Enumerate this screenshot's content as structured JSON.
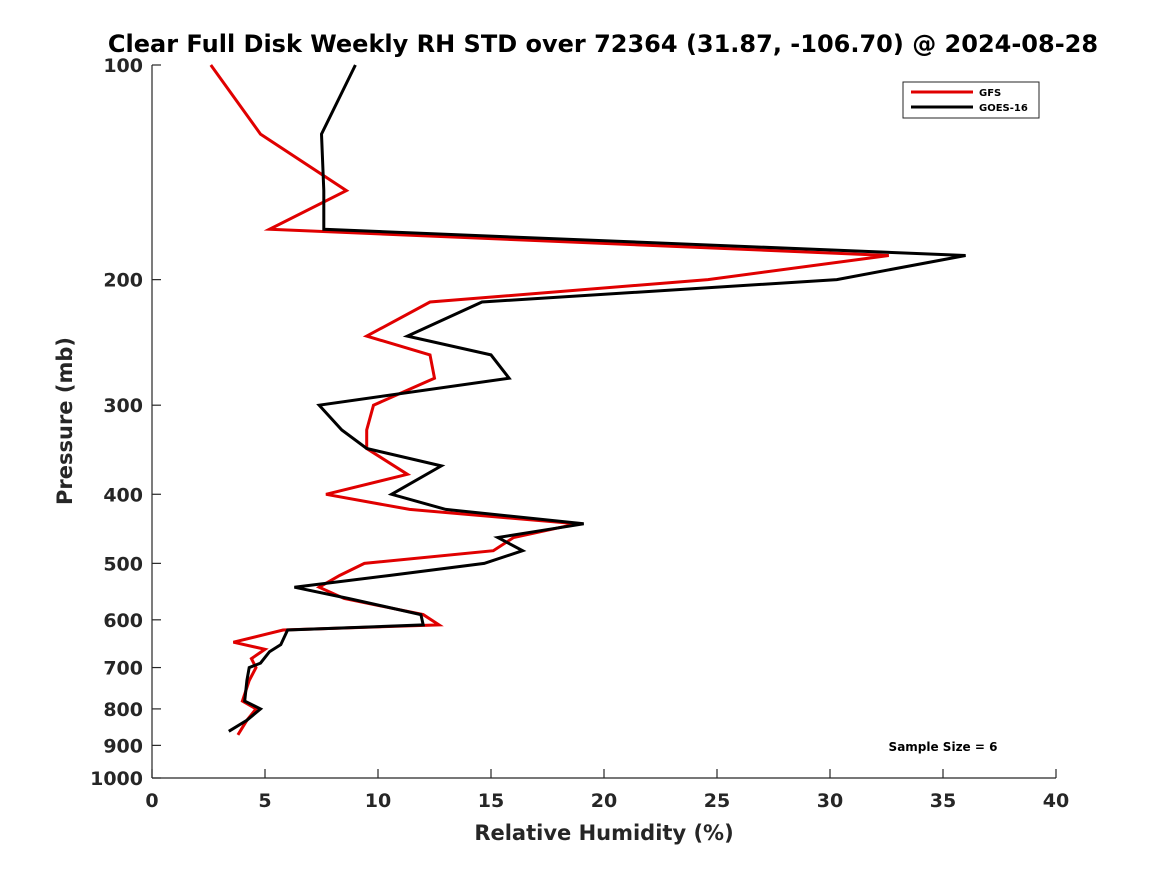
{
  "chart_data": {
    "type": "line",
    "title": "Clear Full Disk Weekly RH STD over 72364 (31.87, -106.70) @ 2024-08-28",
    "xlabel": "Relative Humidity (%)",
    "ylabel": "Pressure (mb)",
    "xlim": [
      0,
      40
    ],
    "ylim": [
      1000,
      100
    ],
    "yscale": "log",
    "xticks": [
      0,
      5,
      10,
      15,
      20,
      25,
      30,
      35,
      40
    ],
    "yticks": [
      100,
      200,
      300,
      400,
      500,
      600,
      700,
      800,
      900,
      1000
    ],
    "grid": false,
    "legend_location": "top-right",
    "annotation": "Sample Size = 6",
    "series": [
      {
        "name": "GFS",
        "color": "#e00000",
        "points": [
          [
            2.6,
            100
          ],
          [
            4.8,
            125
          ],
          [
            8.6,
            150
          ],
          [
            5.2,
            170
          ],
          [
            32.6,
            185
          ],
          [
            24.6,
            200
          ],
          [
            12.3,
            215
          ],
          [
            9.5,
            240
          ],
          [
            12.3,
            255
          ],
          [
            12.5,
            275
          ],
          [
            9.8,
            300
          ],
          [
            9.5,
            325
          ],
          [
            9.5,
            345
          ],
          [
            11.3,
            375
          ],
          [
            7.7,
            400
          ],
          [
            11.4,
            420
          ],
          [
            18.8,
            440
          ],
          [
            16.0,
            460
          ],
          [
            15.1,
            480
          ],
          [
            9.4,
            500
          ],
          [
            8.3,
            520
          ],
          [
            7.4,
            540
          ],
          [
            8.5,
            560
          ],
          [
            12.0,
            590
          ],
          [
            12.7,
            610
          ],
          [
            5.8,
            620
          ],
          [
            3.6,
            645
          ],
          [
            5.0,
            660
          ],
          [
            4.4,
            680
          ],
          [
            4.6,
            700
          ],
          [
            4.3,
            730
          ],
          [
            4.0,
            780
          ],
          [
            4.6,
            800
          ],
          [
            4.2,
            830
          ],
          [
            3.9,
            860
          ],
          [
            3.8,
            870
          ]
        ]
      },
      {
        "name": "GOES-16",
        "color": "#000000",
        "points": [
          [
            9.0,
            100
          ],
          [
            7.5,
            125
          ],
          [
            7.6,
            150
          ],
          [
            7.6,
            170
          ],
          [
            36.0,
            185
          ],
          [
            30.3,
            200
          ],
          [
            14.6,
            215
          ],
          [
            11.3,
            240
          ],
          [
            15.0,
            255
          ],
          [
            15.8,
            275
          ],
          [
            7.4,
            300
          ],
          [
            8.4,
            325
          ],
          [
            9.5,
            345
          ],
          [
            12.8,
            365
          ],
          [
            10.6,
            400
          ],
          [
            13.0,
            420
          ],
          [
            19.1,
            440
          ],
          [
            15.3,
            460
          ],
          [
            16.4,
            480
          ],
          [
            14.7,
            500
          ],
          [
            10.5,
            520
          ],
          [
            6.3,
            540
          ],
          [
            8.7,
            560
          ],
          [
            11.9,
            590
          ],
          [
            12.0,
            610
          ],
          [
            6.0,
            620
          ],
          [
            5.7,
            650
          ],
          [
            5.2,
            665
          ],
          [
            4.8,
            690
          ],
          [
            4.3,
            700
          ],
          [
            4.2,
            730
          ],
          [
            4.1,
            780
          ],
          [
            4.8,
            800
          ],
          [
            4.2,
            830
          ],
          [
            3.4,
            860
          ]
        ]
      }
    ]
  }
}
